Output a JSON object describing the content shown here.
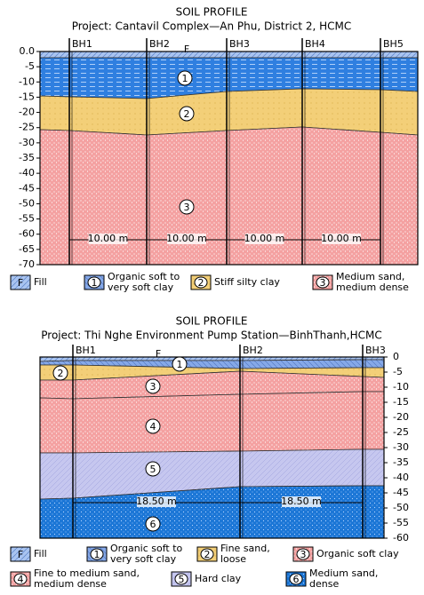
{
  "profiles": [
    {
      "title": "SOIL PROFILE",
      "project": "Project:  Cantavil Complex—An Phu, District 2, HCMC",
      "boreholes": [
        "BH1",
        "BH2",
        "BH3",
        "BH4",
        "BH5"
      ],
      "ylim": [
        0,
        -70
      ],
      "depth_ticks": [
        {
          "value": 0,
          "label": "0.0"
        },
        -5,
        -10,
        -15,
        -20,
        -25,
        -30,
        -35,
        -40,
        -45,
        -50,
        -55,
        -60,
        -65,
        -70
      ],
      "layer_tags": [
        "F",
        "1",
        "2",
        "3"
      ],
      "spacings": [
        "10.00 m",
        "10.00 m",
        "10.00 m",
        "10.00 m"
      ],
      "legend": [
        {
          "symbol": "F",
          "lines": [
            "Fill"
          ]
        },
        {
          "symbol": "1",
          "lines": [
            "Organic soft to",
            "very soft clay"
          ]
        },
        {
          "symbol": "2",
          "lines": [
            "Stiff silty clay"
          ]
        },
        {
          "symbol": "3",
          "lines": [
            "Medium sand,",
            "medium dense"
          ]
        }
      ]
    },
    {
      "title": "SOIL PROFILE",
      "project": "Project: Thi Nghe Environment Pump Station—BinhThanh,HCMC",
      "boreholes": [
        "BH1",
        "BH2",
        "BH3"
      ],
      "ylim": [
        0,
        -60
      ],
      "depth_ticks": [
        0,
        -5,
        -10,
        -15,
        -20,
        -25,
        -30,
        -35,
        -40,
        -45,
        -50,
        -55,
        -60
      ],
      "layer_tags": [
        "F",
        "1",
        "2",
        "3",
        "4",
        "5",
        "6"
      ],
      "spacings": [
        "18.50 m",
        "18.50 m"
      ],
      "legend": [
        {
          "symbol": "F",
          "lines": [
            "Fill"
          ]
        },
        {
          "symbol": "1",
          "lines": [
            "Organic soft to",
            "very soft clay"
          ]
        },
        {
          "symbol": "2",
          "lines": [
            "Fine sand,",
            "loose"
          ]
        },
        {
          "symbol": "3",
          "lines": [
            "Organic soft clay"
          ]
        },
        {
          "symbol": "4",
          "lines": [
            "Fine to medium sand,",
            "medium dense"
          ]
        },
        {
          "symbol": "5",
          "lines": [
            "Hard clay"
          ]
        },
        {
          "symbol": "6",
          "lines": [
            "Medium sand,",
            "dense"
          ]
        }
      ]
    }
  ]
}
